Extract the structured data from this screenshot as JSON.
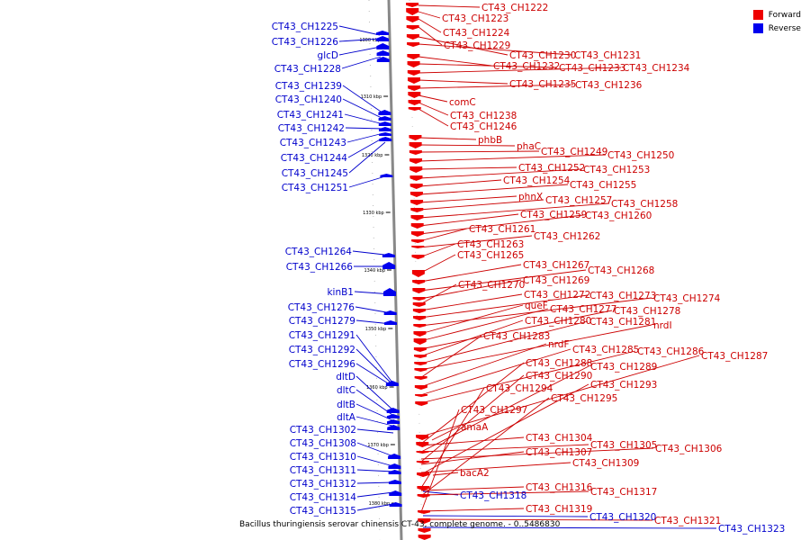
{
  "title": "Bacillus thuringiensis serovar chinensis CT-43, complete genome. - 0..5486830",
  "legend": {
    "forward": {
      "label": "Forward",
      "color": "#ee0000"
    },
    "reverse": {
      "label": "Reverse",
      "color": "#0000ee"
    }
  },
  "colors": {
    "forward_label": "#cc0000",
    "reverse_label": "#0000cc",
    "backbone": "#888888"
  },
  "scale_ticks": [
    "1300 kbp",
    "1310 kbp",
    "1320 kbp",
    "1330 kbp",
    "1340 kbp",
    "1350 kbp",
    "1360 kbp",
    "1370 kbp",
    "1380 kbp"
  ],
  "reverse_genes": [
    "CT43_CH1225",
    "CT43_CH1226",
    "glcD",
    "CT43_CH1228",
    "CT43_CH1239",
    "CT43_CH1240",
    "CT43_CH1241",
    "CT43_CH1242",
    "CT43_CH1243",
    "CT43_CH1244",
    "CT43_CH1245",
    "CT43_CH1251",
    "CT43_CH1264",
    "CT43_CH1266",
    "kinB1",
    "CT43_CH1276",
    "CT43_CH1279",
    "CT43_CH1291",
    "CT43_CH1292",
    "CT43_CH1296",
    "dltD",
    "dltC",
    "dltB",
    "dltA",
    "CT43_CH1302",
    "CT43_CH1308",
    "CT43_CH1310",
    "CT43_CH1311",
    "CT43_CH1312",
    "CT43_CH1314",
    "CT43_CH1315",
    "CT43_CH1318",
    "CT43_CH1320",
    "CT43_CH1323"
  ],
  "forward_genes": [
    "CT43_CH1222",
    "CT43_CH1223",
    "CT43_CH1224",
    "CT43_CH1229",
    "CT43_CH1230",
    "CT43_CH1231",
    "CT43_CH1232",
    "CT43_CH1233",
    "CT43_CH1234",
    "CT43_CH1235",
    "CT43_CH1236",
    "comC",
    "CT43_CH1238",
    "CT43_CH1246",
    "phbB",
    "phaC",
    "CT43_CH1249",
    "CT43_CH1250",
    "CT43_CH1252",
    "CT43_CH1253",
    "CT43_CH1254",
    "CT43_CH1255",
    "phnX",
    "CT43_CH1257",
    "CT43_CH1258",
    "CT43_CH1259",
    "CT43_CH1260",
    "CT43_CH1261",
    "CT43_CH1262",
    "CT43_CH1263",
    "CT43_CH1265",
    "CT43_CH1267",
    "CT43_CH1268",
    "CT43_CH1269",
    "CT43_CH1270",
    "CT43_CH1272",
    "CT43_CH1273",
    "CT43_CH1274",
    "queF",
    "CT43_CH1277",
    "CT43_CH1278",
    "CT43_CH1280",
    "CT43_CH1281",
    "nrdI",
    "CT43_CH1283",
    "nrdF",
    "CT43_CH1285",
    "CT43_CH1286",
    "CT43_CH1287",
    "CT43_CH1288",
    "CT43_CH1289",
    "CT43_CH1290",
    "CT43_CH1293",
    "CT43_CH1294",
    "CT43_CH1295",
    "CT43_CH1297",
    "amaA",
    "CT43_CH1304",
    "CT43_CH1305",
    "CT43_CH1306",
    "CT43_CH1307",
    "CT43_CH1309",
    "bacA2",
    "CT43_CH1316",
    "CT43_CH1317",
    "CT43_CH1319",
    "CT43_CH1321"
  ]
}
